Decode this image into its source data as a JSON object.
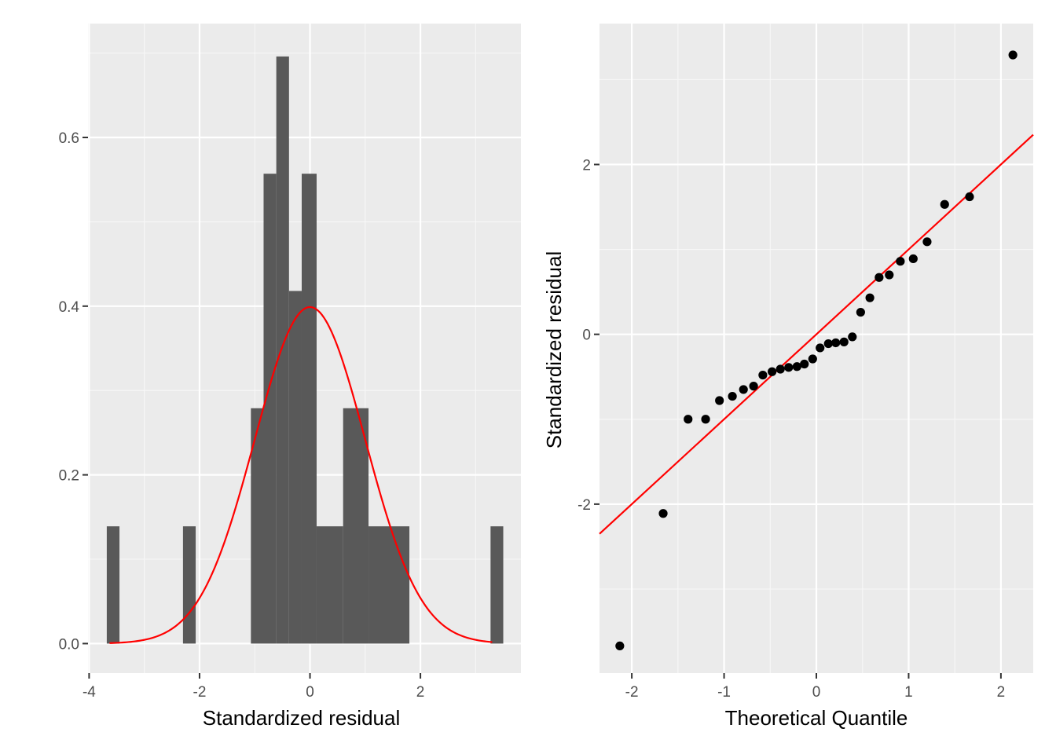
{
  "colors": {
    "panel_bg": "#ebebeb",
    "grid_major": "#ffffff",
    "grid_minor": "#f7f7f7",
    "bar_fill": "#595959",
    "curve": "#ff0000",
    "point": "#000000",
    "tick": "#333333"
  },
  "chart_data": [
    {
      "type": "bar",
      "subtype": "histogram-with-density",
      "title": "",
      "xlabel": "Standardized residual",
      "ylabel": "",
      "xlim": [
        -4.02,
        3.82
      ],
      "ylim": [
        -0.035,
        0.735
      ],
      "x_ticks": [
        -4,
        -2,
        0,
        2
      ],
      "x_tick_labels": [
        "-4",
        "-2",
        "0",
        "2"
      ],
      "y_ticks": [
        0.0,
        0.2,
        0.4,
        0.6
      ],
      "y_tick_labels": [
        "0.0",
        "0.2",
        "0.4",
        "0.6"
      ],
      "grid": true,
      "bins": [
        {
          "x0": -3.68,
          "x1": -3.45,
          "density": 0.139
        },
        {
          "x0": -2.3,
          "x1": -2.07,
          "density": 0.139
        },
        {
          "x0": -1.07,
          "x1": -0.84,
          "density": 0.279
        },
        {
          "x0": -0.84,
          "x1": -0.61,
          "density": 0.557
        },
        {
          "x0": -0.61,
          "x1": -0.38,
          "density": 0.696
        },
        {
          "x0": -0.38,
          "x1": -0.15,
          "density": 0.418
        },
        {
          "x0": -0.15,
          "x1": 0.12,
          "density": 0.557
        },
        {
          "x0": 0.12,
          "x1": 0.6,
          "density": 0.139
        },
        {
          "x0": 0.6,
          "x1": 1.06,
          "density": 0.279
        },
        {
          "x0": 1.06,
          "x1": 1.8,
          "density": 0.139
        },
        {
          "x0": 3.27,
          "x1": 3.5,
          "density": 0.139
        }
      ],
      "density_curve": {
        "distribution": "standard-normal",
        "x_range": [
          -3.63,
          3.3
        ]
      }
    },
    {
      "type": "scatter",
      "subtype": "qq-plot",
      "title": "",
      "xlabel": "Theoretical Quantile",
      "ylabel": "Standardized residual",
      "xlim": [
        -2.35,
        2.35
      ],
      "ylim": [
        -3.99,
        3.66
      ],
      "x_ticks": [
        -2,
        -1,
        0,
        1,
        2
      ],
      "x_tick_labels": [
        "-2",
        "-1",
        "0",
        "1",
        "2"
      ],
      "y_ticks": [
        -2,
        0,
        2
      ],
      "y_tick_labels": [
        "-2",
        "0",
        "2"
      ],
      "grid": true,
      "points": [
        {
          "x": -2.13,
          "y": -3.67
        },
        {
          "x": -1.66,
          "y": -2.11
        },
        {
          "x": -1.39,
          "y": -1.0
        },
        {
          "x": -1.2,
          "y": -1.0
        },
        {
          "x": -1.05,
          "y": -0.78
        },
        {
          "x": -0.91,
          "y": -0.73
        },
        {
          "x": -0.79,
          "y": -0.65
        },
        {
          "x": -0.68,
          "y": -0.61
        },
        {
          "x": -0.58,
          "y": -0.48
        },
        {
          "x": -0.48,
          "y": -0.44
        },
        {
          "x": -0.39,
          "y": -0.41
        },
        {
          "x": -0.3,
          "y": -0.39
        },
        {
          "x": -0.21,
          "y": -0.38
        },
        {
          "x": -0.13,
          "y": -0.35
        },
        {
          "x": -0.04,
          "y": -0.29
        },
        {
          "x": 0.04,
          "y": -0.16
        },
        {
          "x": 0.13,
          "y": -0.11
        },
        {
          "x": 0.21,
          "y": -0.1
        },
        {
          "x": 0.3,
          "y": -0.09
        },
        {
          "x": 0.39,
          "y": -0.03
        },
        {
          "x": 0.48,
          "y": 0.26
        },
        {
          "x": 0.58,
          "y": 0.43
        },
        {
          "x": 0.68,
          "y": 0.67
        },
        {
          "x": 0.79,
          "y": 0.7
        },
        {
          "x": 0.91,
          "y": 0.86
        },
        {
          "x": 1.05,
          "y": 0.89
        },
        {
          "x": 1.2,
          "y": 1.09
        },
        {
          "x": 1.39,
          "y": 1.53
        },
        {
          "x": 1.66,
          "y": 1.62
        },
        {
          "x": 2.13,
          "y": 3.29
        }
      ],
      "reference_line": {
        "intercept": 0.0,
        "slope": 1.0
      }
    }
  ]
}
